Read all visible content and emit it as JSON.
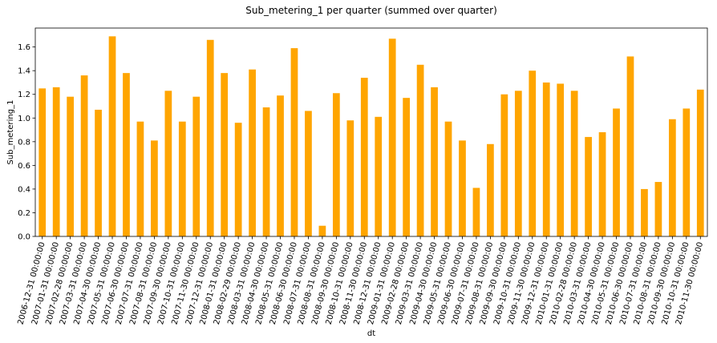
{
  "chart_data": {
    "type": "bar",
    "title": "Sub_metering_1 per quarter (summed over quarter)",
    "xlabel": "dt",
    "ylabel": "Sub_metering_1",
    "ylim": [
      0,
      1.76
    ],
    "yticks": [
      "0.0",
      "0.2",
      "0.4",
      "0.6",
      "0.8",
      "1.0",
      "1.2",
      "1.4",
      "1.6"
    ],
    "grid": false,
    "legend": "none",
    "bar_color": "#FFA500",
    "categories": [
      "2006-12-31 00:00:00",
      "2007-01-31 00:00:00",
      "2007-02-28 00:00:00",
      "2007-03-31 00:00:00",
      "2007-04-30 00:00:00",
      "2007-05-31 00:00:00",
      "2007-06-30 00:00:00",
      "2007-07-31 00:00:00",
      "2007-08-31 00:00:00",
      "2007-09-30 00:00:00",
      "2007-10-31 00:00:00",
      "2007-11-30 00:00:00",
      "2007-12-31 00:00:00",
      "2008-01-31 00:00:00",
      "2008-02-29 00:00:00",
      "2008-03-31 00:00:00",
      "2008-04-30 00:00:00",
      "2008-05-31 00:00:00",
      "2008-06-30 00:00:00",
      "2008-07-31 00:00:00",
      "2008-08-31 00:00:00",
      "2008-09-30 00:00:00",
      "2008-10-31 00:00:00",
      "2008-11-30 00:00:00",
      "2008-12-31 00:00:00",
      "2009-01-31 00:00:00",
      "2009-02-28 00:00:00",
      "2009-03-31 00:00:00",
      "2009-04-30 00:00:00",
      "2009-05-31 00:00:00",
      "2009-06-30 00:00:00",
      "2009-07-31 00:00:00",
      "2009-08-31 00:00:00",
      "2009-09-30 00:00:00",
      "2009-10-31 00:00:00",
      "2009-11-30 00:00:00",
      "2009-12-31 00:00:00",
      "2010-01-31 00:00:00",
      "2010-02-28 00:00:00",
      "2010-03-31 00:00:00",
      "2010-04-30 00:00:00",
      "2010-05-31 00:00:00",
      "2010-06-30 00:00:00",
      "2010-07-31 00:00:00",
      "2010-08-31 00:00:00",
      "2010-09-30 00:00:00",
      "2010-10-31 00:00:00",
      "2010-11-30 00:00:00"
    ],
    "values": [
      1.25,
      1.26,
      1.18,
      1.36,
      1.07,
      1.69,
      1.38,
      0.97,
      0.81,
      1.23,
      0.97,
      1.18,
      1.66,
      1.38,
      0.96,
      1.41,
      1.09,
      1.19,
      1.59,
      1.06,
      0.09,
      1.21,
      0.98,
      1.34,
      1.01,
      1.67,
      1.17,
      1.45,
      1.26,
      0.97,
      0.81,
      0.41,
      0.78,
      1.2,
      1.23,
      1.4,
      1.3,
      1.29,
      1.23,
      0.84,
      0.88,
      1.08,
      1.52,
      0.4,
      0.46,
      0.99,
      1.08,
      1.24
    ]
  }
}
